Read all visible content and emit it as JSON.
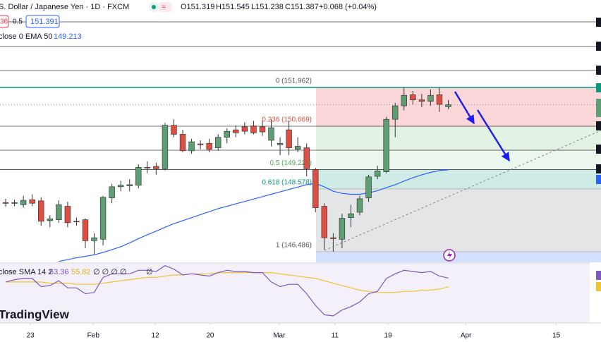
{
  "header": {
    "title": "S. Dollar / Japanese Yen · 1D · FXCM",
    "ohlc": [
      "O151.319",
      "H151.545",
      "L151.238",
      "C151.387",
      "+0.068 (+0.04%)"
    ],
    "sell_box": "36",
    "spread": "0.5",
    "buy_box": "151.391",
    "logo": "TradingView"
  },
  "chart_data": {
    "type": "candlestick",
    "xlim": [
      -0.64,
      67.25
    ],
    "xticks": [
      {
        "value": 2.8,
        "label": "23"
      },
      {
        "value": 9.9,
        "label": "Feb"
      },
      {
        "value": 16.9,
        "label": "12"
      },
      {
        "value": 23.1,
        "label": "20"
      },
      {
        "value": 30.9,
        "label": "Mar"
      },
      {
        "value": 37.2,
        "label": "11"
      },
      {
        "value": 43.2,
        "label": "19"
      },
      {
        "value": 52,
        "label": "Apr"
      },
      {
        "value": 62.2,
        "label": "15"
      }
    ],
    "ylim": [
      146.13,
      154.88
    ],
    "up_color": "#5e9e72",
    "down_color": "#dd4f42",
    "open": [
      148.12,
      148.1,
      148.05,
      148.22,
      148.18,
      147.52,
      147.55,
      148.0,
      147.5,
      147.55,
      146.85,
      146.9,
      148.28,
      148.65,
      148.68,
      148.7,
      149.3,
      149.33,
      149.25,
      150.7,
      150.4,
      149.85,
      150.08,
      150.1,
      149.95,
      150.3,
      150.55,
      150.65,
      150.68,
      150.65,
      150.2,
      150.05,
      150.55,
      149.9,
      149.95,
      149.22,
      148.0,
      146.95,
      146.9,
      147.62,
      147.8,
      148.28,
      149.0,
      149.15,
      150.9,
      151.35,
      151.72,
      151.55,
      151.5,
      151.72,
      151.319
    ],
    "high": [
      148.25,
      148.22,
      148.35,
      148.4,
      148.3,
      147.7,
      148.2,
      148.15,
      147.62,
      147.6,
      147.1,
      148.35,
      148.75,
      148.85,
      148.9,
      149.4,
      149.5,
      149.45,
      150.78,
      150.9,
      150.55,
      150.25,
      150.2,
      150.25,
      150.4,
      150.6,
      150.7,
      150.8,
      150.85,
      150.85,
      150.9,
      150.3,
      150.85,
      150.3,
      150.1,
      149.28,
      148.1,
      147.1,
      147.75,
      148.05,
      148.35,
      149.05,
      149.35,
      150.98,
      151.45,
      151.962,
      151.85,
      151.75,
      151.9,
      151.95,
      151.545
    ],
    "low": [
      147.98,
      148.0,
      147.95,
      148.0,
      147.35,
      147.3,
      147.45,
      147.3,
      147.35,
      146.6,
      146.4,
      146.7,
      148.1,
      148.5,
      148.5,
      148.6,
      149.1,
      149.05,
      149.2,
      150.3,
      149.8,
      149.75,
      149.9,
      149.8,
      149.85,
      150.1,
      150.3,
      150.4,
      150.4,
      150.35,
      150.0,
      149.7,
      149.7,
      149.8,
      149.0,
      147.8,
      146.55,
      146.486,
      146.6,
      147.3,
      147.7,
      148.15,
      148.9,
      149.1,
      150.3,
      151.2,
      151.4,
      151.3,
      151.35,
      151.15,
      151.238
    ],
    "close": [
      148.1,
      148.12,
      148.2,
      148.1,
      147.5,
      147.58,
      148.05,
      147.45,
      147.48,
      146.85,
      146.95,
      148.3,
      148.65,
      148.7,
      148.72,
      149.3,
      149.28,
      149.25,
      150.7,
      150.4,
      149.85,
      150.15,
      150.05,
      149.9,
      150.3,
      150.5,
      150.45,
      150.5,
      150.45,
      150.48,
      150.62,
      150.1,
      149.95,
      150.0,
      149.25,
      147.95,
      146.95,
      146.92,
      147.6,
      147.75,
      148.25,
      148.98,
      149.18,
      150.9,
      151.35,
      151.7,
      151.55,
      151.5,
      151.7,
      151.4,
      151.387
    ],
    "ema": {
      "name": "close 0 EMA 50",
      "color": "#2962ff",
      "values": [
        null,
        null,
        null,
        null,
        null,
        null,
        146.16,
        146.22,
        146.28,
        146.33,
        146.38,
        146.46,
        146.55,
        146.65,
        146.78,
        146.92,
        147.05,
        147.17,
        147.3,
        147.42,
        147.52,
        147.62,
        147.72,
        147.82,
        147.92,
        148.0,
        148.08,
        148.16,
        148.24,
        148.32,
        148.4,
        148.48,
        148.56,
        148.64,
        148.72,
        148.76,
        148.65,
        148.5,
        148.43,
        148.4,
        148.4,
        148.45,
        148.52,
        148.62,
        148.72,
        148.84,
        148.95,
        149.05,
        149.13,
        149.19,
        149.213
      ]
    },
    "horizontal_lines": [
      154.15,
      153.33,
      152.53,
      150.669,
      149.87,
      149.224
    ],
    "fib": {
      "levels": [
        {
          "price": 151.962,
          "label": "0 (151.962)",
          "color": "rgba(242,54,69,0.2)",
          "label_color": "#555"
        },
        {
          "price": 150.669,
          "label": "0.236 (150.669)",
          "color": "rgba(76,175,80,0.16)",
          "label_color": "#dd4f42"
        },
        {
          "price": 149.87,
          "label": null,
          "color": "rgba(76,175,80,0.11)",
          "label_color": "#4caf50"
        },
        {
          "price": 149.224,
          "label": "0.5 (149.224)",
          "color": "rgba(8,153,129,0.2)",
          "label_color": "#4caf50"
        },
        {
          "price": 148.578,
          "label": "0.618 (148.578)",
          "color": "rgba(120,123,134,0.2)",
          "label_color": "#089981"
        },
        {
          "price": 146.486,
          "label": "1 (146.486)",
          "color": "rgba(41,98,255,0.2)",
          "label_color": "#555"
        }
      ]
    },
    "rsi": {
      "label": "close SMA 14 2",
      "ylim": [
        25,
        75
      ],
      "rsi_color": "#7e57c2",
      "sma_color": "#f0c330",
      "empty_a": "∅ ∅ ∅ ∅",
      "empty_b": "∅",
      "rsi_values": [
        60,
        62,
        63,
        63,
        56,
        57,
        61,
        55,
        55,
        50,
        51,
        64,
        67,
        67,
        67,
        70,
        70,
        69,
        74,
        71,
        66,
        67,
        66,
        65,
        68,
        70,
        69,
        69,
        68,
        68,
        60,
        56,
        58,
        58,
        50,
        40,
        32,
        31,
        36,
        39,
        43,
        50,
        52,
        63,
        67,
        70,
        69,
        68,
        69,
        65,
        63.36
      ],
      "sma_values": [
        60,
        60,
        60,
        60,
        60,
        59,
        59,
        59,
        58,
        58,
        58,
        59,
        60,
        61,
        62,
        63,
        64,
        64,
        65,
        66,
        66,
        67,
        67,
        67,
        68,
        68,
        68,
        68,
        68,
        68,
        68,
        67,
        66,
        65,
        64,
        63,
        61,
        59,
        57,
        55,
        53,
        52,
        51,
        51,
        51,
        52,
        52,
        53,
        53,
        54,
        55.82
      ]
    }
  }
}
